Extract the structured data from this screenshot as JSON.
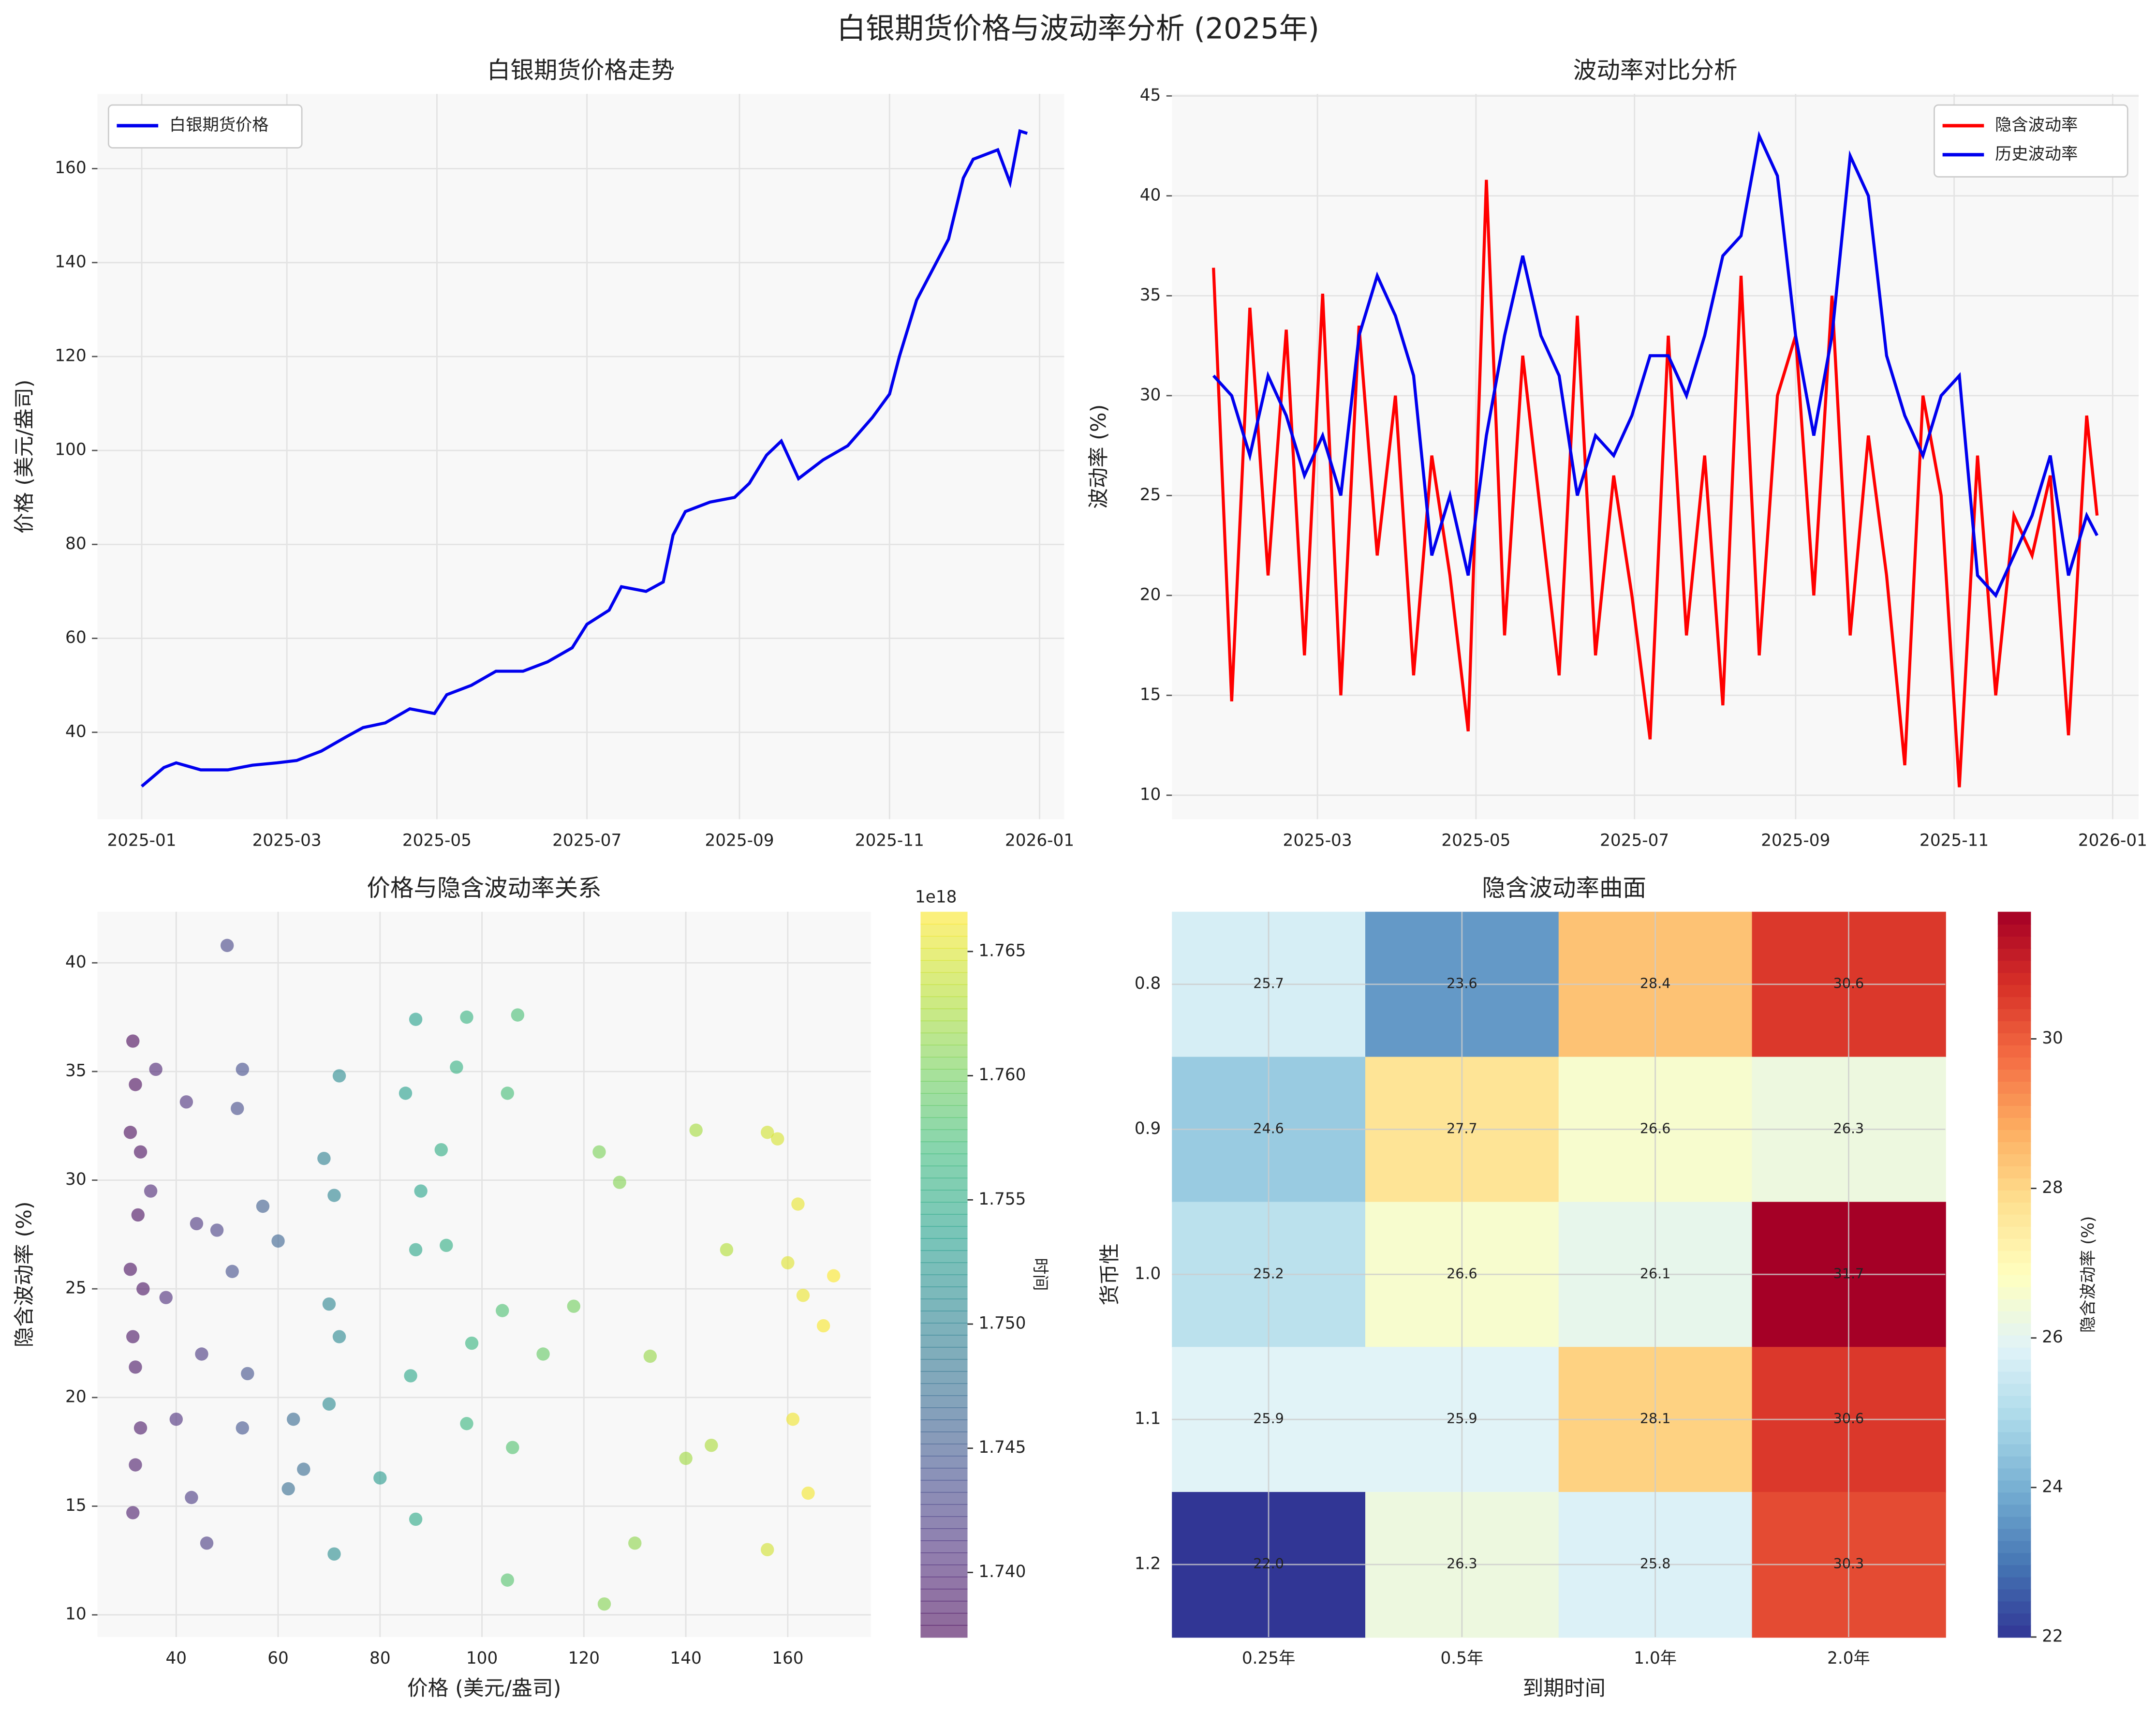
{
  "title": "白银期货价格与波动率分析 (2025年)",
  "chart_data": [
    {
      "type": "line",
      "title": "白银期货价格走势",
      "ylabel": "价格 (美元/盎司)",
      "legend": "upper left",
      "grid": true,
      "x": [
        "2025-01-01",
        "2025-01-10",
        "2025-01-15",
        "2025-01-25",
        "2025-02-05",
        "2025-02-15",
        "2025-02-25",
        "2025-03-05",
        "2025-03-15",
        "2025-03-25",
        "2025-04-01",
        "2025-04-10",
        "2025-04-20",
        "2025-04-30",
        "2025-05-05",
        "2025-05-15",
        "2025-05-25",
        "2025-06-05",
        "2025-06-15",
        "2025-06-25",
        "2025-07-01",
        "2025-07-10",
        "2025-07-15",
        "2025-07-25",
        "2025-08-01",
        "2025-08-05",
        "2025-08-10",
        "2025-08-20",
        "2025-08-30",
        "2025-09-05",
        "2025-09-12",
        "2025-09-18",
        "2025-09-25",
        "2025-10-05",
        "2025-10-15",
        "2025-10-25",
        "2025-11-01",
        "2025-11-05",
        "2025-11-12",
        "2025-11-20",
        "2025-11-25",
        "2025-12-01",
        "2025-12-05",
        "2025-12-10",
        "2025-12-15",
        "2025-12-20",
        "2025-12-24",
        "2025-12-27"
      ],
      "series": [
        {
          "name": "白银期货价格",
          "color": "#0000ee",
          "values": [
            28.5,
            32.5,
            33.5,
            32,
            32,
            33,
            33.5,
            34,
            36,
            39,
            41,
            42,
            45,
            44,
            48,
            50,
            53,
            53,
            55,
            58,
            63,
            66,
            71,
            70,
            72,
            82,
            87,
            89,
            90,
            93,
            99,
            102,
            94,
            98,
            101,
            107,
            112,
            120,
            132,
            140,
            145,
            158,
            162,
            163,
            164,
            157,
            168,
            167.5
          ]
        }
      ],
      "xlim": [
        "2024-12-14",
        "2026-01-11"
      ],
      "ylim": [
        21.5,
        175.9
      ],
      "xticks": [
        {
          "value": "2025-01-01",
          "label": "2025-01"
        },
        {
          "value": "2025-03-01",
          "label": "2025-03"
        },
        {
          "value": "2025-05-01",
          "label": "2025-05"
        },
        {
          "value": "2025-07-01",
          "label": "2025-07"
        },
        {
          "value": "2025-09-01",
          "label": "2025-09"
        },
        {
          "value": "2025-11-01",
          "label": "2025-11"
        },
        {
          "value": "2026-01-01",
          "label": "2026-01"
        }
      ],
      "yticks": [
        40,
        60,
        80,
        100,
        120,
        140,
        160
      ]
    },
    {
      "type": "line",
      "title": "波动率对比分析",
      "ylabel": "波动率 (%)",
      "legend": "upper right",
      "grid": true,
      "x": [
        "2025-01-20",
        "2025-01-27",
        "2025-02-03",
        "2025-02-10",
        "2025-02-17",
        "2025-02-24",
        "2025-03-03",
        "2025-03-10",
        "2025-03-17",
        "2025-03-24",
        "2025-03-31",
        "2025-04-07",
        "2025-04-14",
        "2025-04-21",
        "2025-04-28",
        "2025-05-05",
        "2025-05-12",
        "2025-05-19",
        "2025-05-26",
        "2025-06-02",
        "2025-06-09",
        "2025-06-16",
        "2025-06-23",
        "2025-06-30",
        "2025-07-07",
        "2025-07-14",
        "2025-07-21",
        "2025-07-28",
        "2025-08-04",
        "2025-08-11",
        "2025-08-18",
        "2025-08-25",
        "2025-09-01",
        "2025-09-08",
        "2025-09-15",
        "2025-09-22",
        "2025-09-29",
        "2025-10-06",
        "2025-10-13",
        "2025-10-20",
        "2025-10-27",
        "2025-11-03",
        "2025-11-10",
        "2025-11-17",
        "2025-11-24",
        "2025-12-01",
        "2025-12-08",
        "2025-12-15",
        "2025-12-22",
        "2025-12-26"
      ],
      "series": [
        {
          "name": "隐含波动率",
          "color": "#ff0000",
          "values": [
            36.4,
            14.7,
            34.4,
            21,
            33.3,
            17,
            35.1,
            15,
            33.5,
            22,
            30,
            16,
            27,
            21,
            13.2,
            40.8,
            18,
            32,
            24,
            16,
            34,
            17,
            26,
            20,
            12.8,
            33,
            18,
            27,
            14.5,
            36,
            17,
            30,
            33,
            20,
            35,
            18,
            28,
            21,
            11.5,
            30,
            25,
            10.4,
            27,
            15,
            24,
            22,
            26,
            13,
            29,
            24
          ]
        },
        {
          "name": "历史波动率",
          "color": "#0000ee",
          "values": [
            31,
            30,
            27,
            31,
            29,
            26,
            28,
            25,
            33,
            36,
            34,
            31,
            22,
            25,
            21,
            28,
            33,
            37,
            33,
            31,
            25,
            28,
            27,
            29,
            32,
            32,
            30,
            33,
            37,
            38,
            43,
            41,
            33,
            28,
            33,
            42,
            40,
            32,
            29,
            27,
            30,
            31,
            21,
            20,
            22,
            24,
            27,
            21,
            24,
            23
          ]
        }
      ],
      "xlim": [
        "2025-01-04",
        "2026-01-11"
      ],
      "ylim": [
        8.8,
        45.1
      ],
      "xticks": [
        {
          "value": "2025-03-01",
          "label": "2025-03"
        },
        {
          "value": "2025-05-01",
          "label": "2025-05"
        },
        {
          "value": "2025-07-01",
          "label": "2025-07"
        },
        {
          "value": "2025-09-01",
          "label": "2025-09"
        },
        {
          "value": "2025-11-01",
          "label": "2025-11"
        },
        {
          "value": "2026-01-01",
          "label": "2026-01"
        }
      ],
      "yticks": [
        10,
        15,
        20,
        25,
        30,
        35,
        40,
        45
      ]
    },
    {
      "type": "scatter",
      "title": "价格与隐含波动率关系",
      "xlabel": "价格 (美元/盎司)",
      "ylabel": "隐含波动率 (%)",
      "grid": true,
      "colormap": "viridis",
      "x": [
        31.5,
        32,
        31,
        33,
        32.5,
        31,
        33.5,
        31.5,
        32,
        33,
        32,
        31.5,
        36,
        35,
        38,
        40,
        42,
        44,
        45,
        43,
        46,
        48,
        50,
        52,
        53,
        51,
        54,
        53,
        57,
        60,
        63,
        65,
        62,
        69,
        71,
        70,
        72,
        70,
        72,
        71,
        80,
        85,
        87,
        88,
        87,
        86,
        87,
        92,
        93,
        95,
        97,
        98,
        97,
        105,
        107,
        104,
        106,
        105,
        112,
        118,
        123,
        127,
        124,
        130,
        133,
        140,
        142,
        145,
        148,
        156,
        158,
        160,
        162,
        163,
        161,
        164,
        167,
        169,
        156
      ],
      "values": [
        36.4,
        34.4,
        32.2,
        31.3,
        28.4,
        25.9,
        25,
        22.8,
        21.4,
        18.6,
        16.9,
        14.7,
        35.1,
        29.5,
        24.6,
        19,
        33.6,
        28,
        22,
        15.4,
        13.3,
        27.7,
        40.8,
        33.3,
        35.1,
        25.8,
        21.1,
        18.6,
        28.8,
        27.2,
        19,
        16.7,
        15.8,
        31,
        29.3,
        24.3,
        22.8,
        19.7,
        34.8,
        12.8,
        16.3,
        34,
        37.4,
        29.5,
        26.8,
        21,
        14.4,
        31.4,
        27,
        35.2,
        37.5,
        22.5,
        18.8,
        34,
        37.6,
        24,
        17.7,
        11.6,
        22,
        24.2,
        31.3,
        29.9,
        10.5,
        13.3,
        21.9,
        17.2,
        32.3,
        17.8,
        26.8,
        32.2,
        31.9,
        26.2,
        28.9,
        24.7,
        19,
        15.6,
        23.3,
        25.6,
        13
      ],
      "c": [
        1.7375,
        1.7376,
        1.7377,
        1.7379,
        1.738,
        1.7381,
        1.7383,
        1.7384,
        1.7386,
        1.7388,
        1.739,
        1.7391,
        1.7398,
        1.7401,
        1.7405,
        1.7408,
        1.741,
        1.7413,
        1.7416,
        1.7418,
        1.742,
        1.7425,
        1.743,
        1.7436,
        1.7438,
        1.744,
        1.7442,
        1.7445,
        1.7455,
        1.7462,
        1.7468,
        1.747,
        1.7473,
        1.7498,
        1.7501,
        1.7504,
        1.7507,
        1.751,
        1.7512,
        1.7514,
        1.7528,
        1.7535,
        1.7538,
        1.754,
        1.7543,
        1.7545,
        1.7547,
        1.7552,
        1.7555,
        1.7558,
        1.7561,
        1.7563,
        1.7565,
        1.7575,
        1.7577,
        1.7579,
        1.7582,
        1.7584,
        1.7593,
        1.76,
        1.7605,
        1.7609,
        1.761,
        1.7614,
        1.7618,
        1.7622,
        1.7625,
        1.7628,
        1.7631,
        1.7645,
        1.7648,
        1.7652,
        1.7656,
        1.7658,
        1.766,
        1.7662,
        1.7664,
        1.7665,
        1.7646
      ],
      "xlim": [
        24.55,
        176.3
      ],
      "ylim": [
        8.98,
        42.35
      ],
      "xticks": [
        40,
        60,
        80,
        100,
        120,
        140,
        160
      ],
      "yticks": [
        10,
        15,
        20,
        25,
        30,
        35,
        40
      ],
      "colorbar_label": "时间",
      "colorbar_offset": "1e18",
      "clim": [
        1.7374,
        1.7666
      ],
      "cticks": [
        {
          "value": 1.74,
          "label": "1.740"
        },
        {
          "value": 1.745,
          "label": "1.745"
        },
        {
          "value": 1.75,
          "label": "1.750"
        },
        {
          "value": 1.755,
          "label": "1.755"
        },
        {
          "value": 1.76,
          "label": "1.760"
        },
        {
          "value": 1.765,
          "label": "1.765"
        }
      ]
    },
    {
      "type": "heatmap",
      "title": "隐含波动率曲面",
      "xlabel": "到期时间",
      "ylabel": "货币性",
      "colormap": "RdYlBu_r",
      "categories": [
        "0.25年",
        "0.5年",
        "1.0年",
        "2.0年"
      ],
      "y_categories": [
        "0.8",
        "0.9",
        "1.0",
        "1.1",
        "1.2"
      ],
      "values": [
        [
          25.7,
          23.6,
          28.4,
          30.6
        ],
        [
          24.6,
          27.7,
          26.6,
          26.3
        ],
        [
          25.2,
          26.6,
          26.1,
          31.7
        ],
        [
          25.9,
          25.9,
          28.1,
          30.6
        ],
        [
          22,
          26.3,
          25.8,
          30.3
        ]
      ],
      "value_labels": [
        [
          "25.7",
          "23.6",
          "28.4",
          "30.6"
        ],
        [
          "24.6",
          "27.7",
          "26.6",
          "26.3"
        ],
        [
          "25.2",
          "26.6",
          "26.1",
          "31.7"
        ],
        [
          "25.9",
          "25.9",
          "28.1",
          "30.6"
        ],
        [
          "22.0",
          "26.3",
          "25.8",
          "30.3"
        ]
      ],
      "clim": [
        22,
        31.7
      ],
      "cticks": [
        22,
        24,
        26,
        28,
        30
      ],
      "colorbar_label": "隐含波动率 (%)"
    }
  ]
}
